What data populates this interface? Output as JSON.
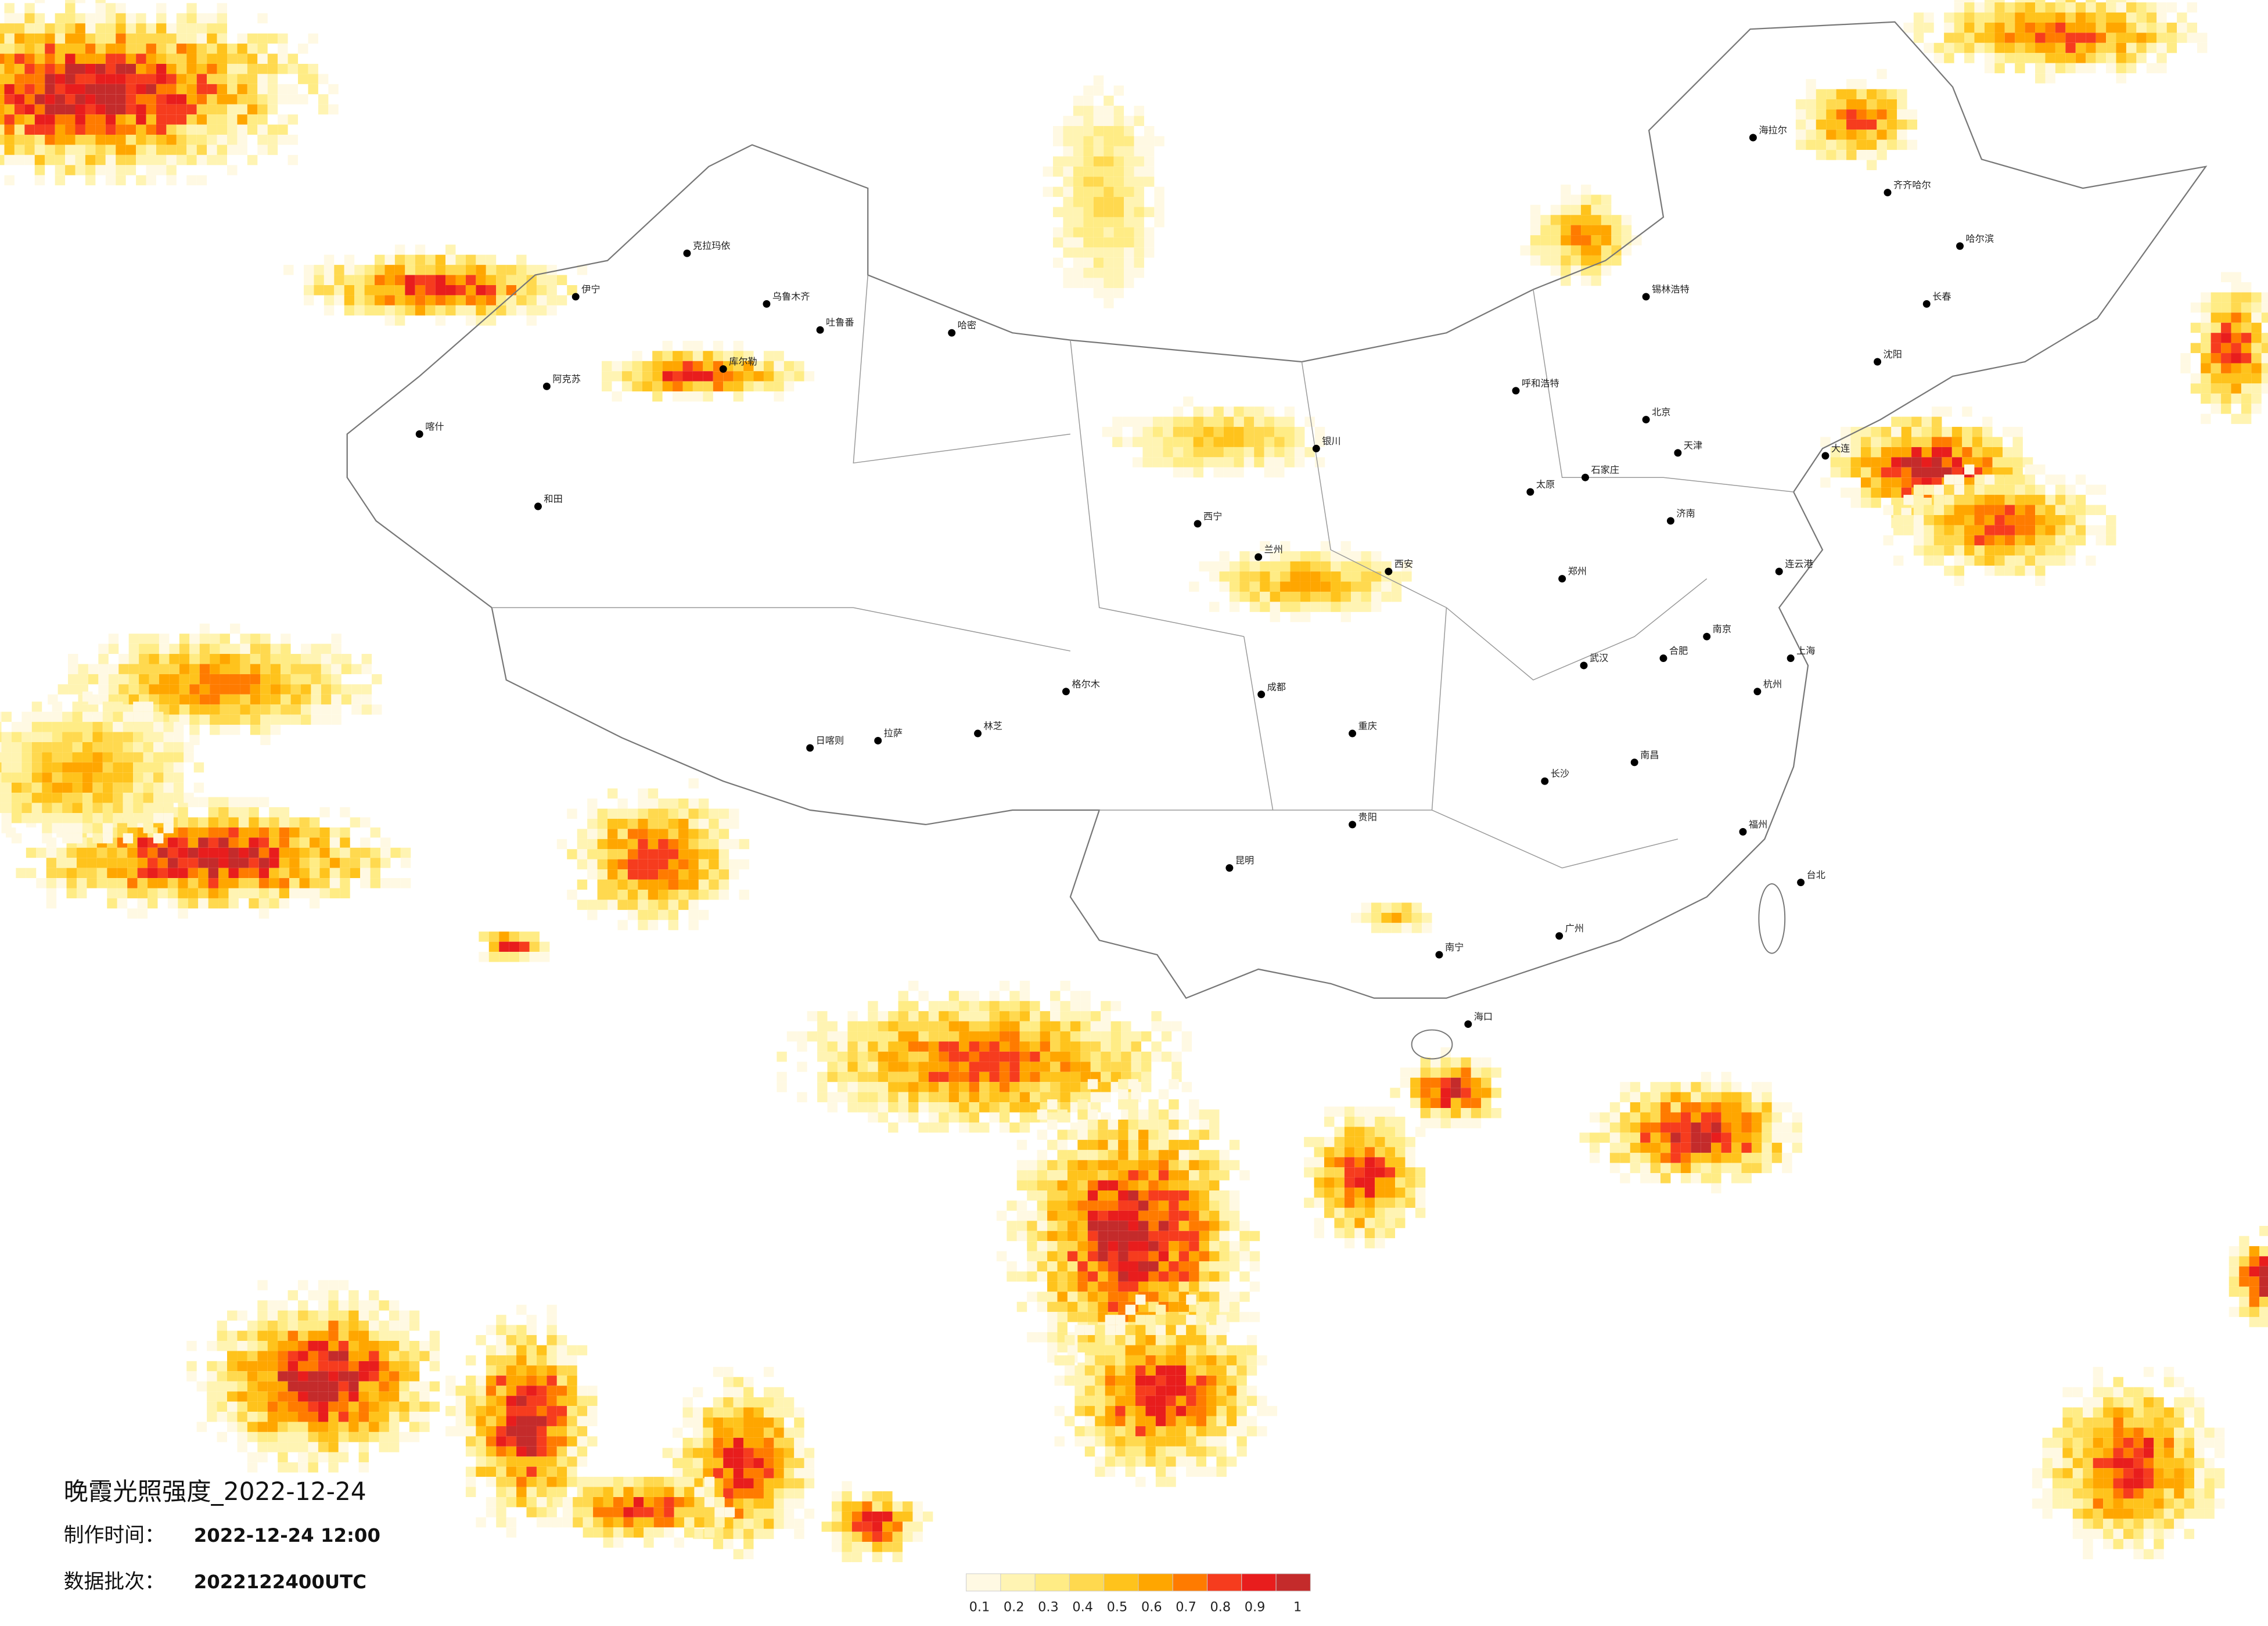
{
  "header": {
    "title": "晚霞光照强度_2022-12-24",
    "made_label": "制作时间：",
    "made_value": "2022-12-24 12:00",
    "batch_label": "数据批次：",
    "batch_value": "2022122400UTC"
  },
  "legend": {
    "colors": [
      "#fff9e3",
      "#fff4b3",
      "#ffec85",
      "#ffd94f",
      "#ffc31c",
      "#ffa600",
      "#ff7b00",
      "#f63c1e",
      "#e81d1d",
      "#c42b2b"
    ],
    "ticks": [
      0.1,
      0.2,
      0.3,
      0.4,
      0.5,
      0.6,
      0.7,
      0.8,
      0.9,
      1
    ]
  },
  "cities": [
    "克拉玛依",
    "伊宁",
    "乌鲁木齐",
    "吐鲁番",
    "哈密",
    "库尔勒",
    "阿克苏",
    "喀什",
    "和田",
    "格尔木",
    "拉萨",
    "日喀则",
    "林芝",
    "西宁",
    "兰州",
    "银川",
    "呼和浩特",
    "北京",
    "天津",
    "石家庄",
    "太原",
    "济南",
    "郑州",
    "西安",
    "成都",
    "重庆",
    "武汉",
    "长沙",
    "南昌",
    "合肥",
    "南京",
    "上海",
    "杭州",
    "福州",
    "广州",
    "南宁",
    "海口",
    "昆明",
    "贵阳",
    "台北",
    "哈尔滨",
    "长春",
    "沈阳",
    "大连",
    "齐齐哈尔",
    "海拉尔",
    "锡林浩特",
    "连云港"
  ]
}
